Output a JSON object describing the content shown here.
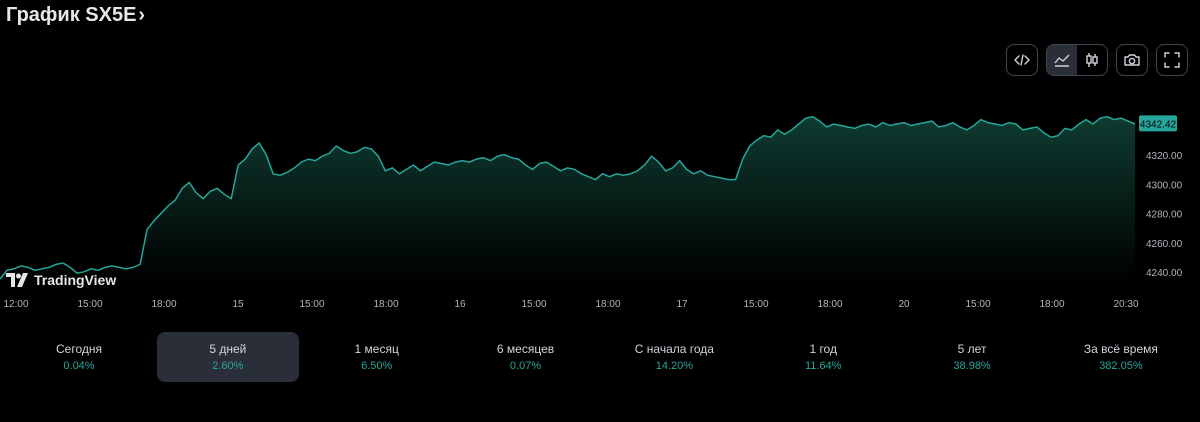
{
  "header": {
    "title": "График SX5E",
    "chevron": "›"
  },
  "toolbar": [
    {
      "name": "embed-button",
      "icon": "code-icon"
    },
    {
      "name": "area-chart-button",
      "icon": "area-chart-icon",
      "active": true
    },
    {
      "name": "candles-chart-button",
      "icon": "candles-icon"
    },
    {
      "name": "screenshot-button",
      "icon": "camera-icon"
    },
    {
      "name": "fullscreen-button",
      "icon": "fullscreen-icon"
    }
  ],
  "logo": {
    "text": "TradingView",
    "icon": "tradingview-logo-icon"
  },
  "colors": {
    "line": "#26a69a",
    "fill_top": "#0e3b30",
    "fill_bottom": "#000000",
    "price_label_bg": "#26a69a",
    "active_range_bg": "#2a2e39"
  },
  "chart_data": {
    "type": "area",
    "x_tick_labels": [
      "12:00",
      "15:00",
      "18:00",
      "15",
      "15:00",
      "18:00",
      "16",
      "15:00",
      "18:00",
      "17",
      "15:00",
      "18:00",
      "20",
      "15:00",
      "18:00",
      "20:30"
    ],
    "y_ticks": [
      4240,
      4260,
      4280,
      4300,
      4320
    ],
    "y_tick_labels": [
      "4240.00",
      "4260.00",
      "4280.00",
      "4300.00",
      "4320.00"
    ],
    "ylim": [
      4234,
      4368
    ],
    "last_price": 4342.42,
    "last_price_label": "4342.42",
    "grid": false,
    "values": [
      4236,
      4242,
      4243,
      4245,
      4244,
      4242,
      4243,
      4244,
      4246,
      4247,
      4244,
      4240,
      4241,
      4243,
      4242,
      4244,
      4245,
      4244,
      4243,
      4244,
      4246,
      4270,
      4276,
      4281,
      4286,
      4290,
      4298,
      4302,
      4295,
      4291,
      4296,
      4298,
      4294,
      4291,
      4314,
      4318,
      4325,
      4329,
      4321,
      4308,
      4307,
      4309,
      4312,
      4316,
      4318,
      4317,
      4320,
      4322,
      4327,
      4324,
      4322,
      4323,
      4326,
      4325,
      4320,
      4310,
      4312,
      4308,
      4311,
      4314,
      4310,
      4313,
      4316,
      4315,
      4314,
      4316,
      4317,
      4316,
      4318,
      4319,
      4317,
      4320,
      4321,
      4319,
      4318,
      4314,
      4311,
      4315,
      4316,
      4313,
      4310,
      4312,
      4311,
      4308,
      4306,
      4304,
      4308,
      4306,
      4308,
      4307,
      4308,
      4310,
      4314,
      4320,
      4316,
      4310,
      4312,
      4317,
      4311,
      4308,
      4310,
      4307,
      4306,
      4305,
      4304,
      4304,
      4318,
      4327,
      4331,
      4334,
      4333,
      4338,
      4335,
      4338,
      4342,
      4346,
      4347,
      4344,
      4340,
      4342,
      4341,
      4340,
      4339,
      4341,
      4342,
      4340,
      4343,
      4341,
      4342,
      4343,
      4341,
      4342,
      4343,
      4344,
      4340,
      4341,
      4343,
      4340,
      4338,
      4341,
      4345,
      4343,
      4342,
      4341,
      4343,
      4342,
      4338,
      4339,
      4340,
      4336,
      4333,
      4334,
      4339,
      4338,
      4342,
      4345,
      4342,
      4346,
      4347,
      4345,
      4346,
      4344,
      4342
    ]
  },
  "ranges": [
    {
      "label": "Сегодня",
      "value": "0.04%"
    },
    {
      "label": "5 дней",
      "value": "2.60%",
      "active": true
    },
    {
      "label": "1 месяц",
      "value": "6.50%"
    },
    {
      "label": "6 месяцев",
      "value": "0.07%"
    },
    {
      "label": "С начала года",
      "value": "14.20%"
    },
    {
      "label": "1 год",
      "value": "11.64%"
    },
    {
      "label": "5 лет",
      "value": "38.98%"
    },
    {
      "label": "За всё время",
      "value": "382.05%"
    }
  ]
}
